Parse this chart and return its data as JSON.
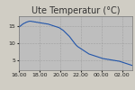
{
  "title": "Ute Temperatur (°C)",
  "title_fontsize": 7.0,
  "background_color": "#d0cdc4",
  "plot_bg_color": "#bebebe",
  "line_color": "#2255aa",
  "line_width": 0.8,
  "xlim": [
    0,
    11
  ],
  "ylim": [
    2,
    18
  ],
  "yticks": [
    5,
    10,
    15
  ],
  "xtick_labels": [
    "16.00",
    "18.00",
    "20.00",
    "22.00",
    "00.00",
    "02.00"
  ],
  "xtick_positions": [
    0,
    2,
    4,
    6,
    8,
    10
  ],
  "grid_color": "#999999",
  "tick_fontsize": 4.5,
  "x": [
    0.0,
    0.1,
    0.2,
    0.3,
    0.4,
    0.5,
    0.6,
    0.7,
    0.8,
    0.9,
    1.0,
    1.1,
    1.2,
    1.3,
    1.4,
    1.5,
    1.6,
    1.7,
    1.8,
    1.9,
    2.0,
    2.1,
    2.2,
    2.3,
    2.4,
    2.5,
    2.6,
    2.7,
    2.8,
    2.9,
    3.0,
    3.1,
    3.2,
    3.3,
    3.4,
    3.5,
    3.6,
    3.7,
    3.8,
    3.9,
    4.0,
    4.1,
    4.2,
    4.3,
    4.4,
    4.5,
    4.6,
    4.7,
    4.8,
    4.9,
    5.0,
    5.1,
    5.2,
    5.3,
    5.4,
    5.5,
    5.6,
    5.7,
    5.8,
    5.9,
    6.0,
    6.1,
    6.2,
    6.3,
    6.4,
    6.5,
    6.6,
    6.7,
    6.8,
    6.9,
    7.0,
    7.1,
    7.2,
    7.3,
    7.4,
    7.5,
    7.6,
    7.7,
    7.8,
    7.9,
    8.0,
    8.1,
    8.2,
    8.3,
    8.4,
    8.5,
    8.6,
    8.7,
    8.8,
    8.9,
    9.0,
    9.1,
    9.2,
    9.3,
    9.4,
    9.5,
    9.6,
    9.7,
    9.8,
    9.9,
    10.0,
    10.1,
    10.2,
    10.3,
    10.4,
    10.5,
    10.6,
    10.7,
    10.8,
    10.9,
    11.0
  ],
  "y": [
    14.8,
    15.0,
    15.2,
    15.5,
    15.7,
    15.9,
    16.0,
    16.2,
    16.3,
    16.4,
    16.5,
    16.5,
    16.5,
    16.4,
    16.4,
    16.3,
    16.3,
    16.2,
    16.2,
    16.1,
    16.1,
    16.0,
    16.0,
    15.9,
    15.9,
    15.8,
    15.8,
    15.7,
    15.7,
    15.6,
    15.5,
    15.4,
    15.3,
    15.2,
    15.1,
    15.0,
    14.9,
    14.8,
    14.7,
    14.6,
    14.4,
    14.2,
    14.0,
    13.8,
    13.5,
    13.2,
    12.9,
    12.6,
    12.3,
    12.0,
    11.6,
    11.2,
    10.8,
    10.4,
    10.0,
    9.6,
    9.3,
    9.0,
    8.8,
    8.6,
    8.4,
    8.2,
    8.0,
    7.8,
    7.6,
    7.4,
    7.2,
    7.0,
    6.8,
    6.7,
    6.6,
    6.5,
    6.4,
    6.3,
    6.2,
    6.1,
    6.0,
    5.9,
    5.8,
    5.7,
    5.6,
    5.5,
    5.4,
    5.4,
    5.3,
    5.3,
    5.2,
    5.2,
    5.1,
    5.1,
    5.0,
    5.0,
    4.9,
    4.9,
    4.8,
    4.8,
    4.7,
    4.7,
    4.6,
    4.5,
    4.4,
    4.3,
    4.2,
    4.1,
    4.0,
    3.9,
    3.8,
    3.7,
    3.6,
    3.5,
    3.4
  ]
}
